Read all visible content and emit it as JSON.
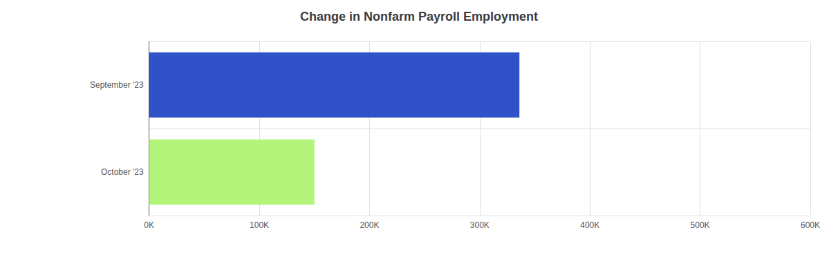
{
  "chart_data": {
    "type": "bar",
    "orientation": "horizontal",
    "title": "Change in Nonfarm Payroll Employment",
    "categories": [
      "October '23",
      "September '23"
    ],
    "values": [
      150000,
      336000
    ],
    "colors": [
      "#b3f57a",
      "#2f52c8"
    ],
    "xlim": [
      0,
      600000
    ],
    "xticks": [
      {
        "value": 0,
        "label": "0K"
      },
      {
        "value": 100000,
        "label": "100K"
      },
      {
        "value": 200000,
        "label": "200K"
      },
      {
        "value": 300000,
        "label": "300K"
      },
      {
        "value": 400000,
        "label": "400K"
      },
      {
        "value": 500000,
        "label": "500K"
      },
      {
        "value": 600000,
        "label": "600K"
      }
    ],
    "grid": true
  }
}
